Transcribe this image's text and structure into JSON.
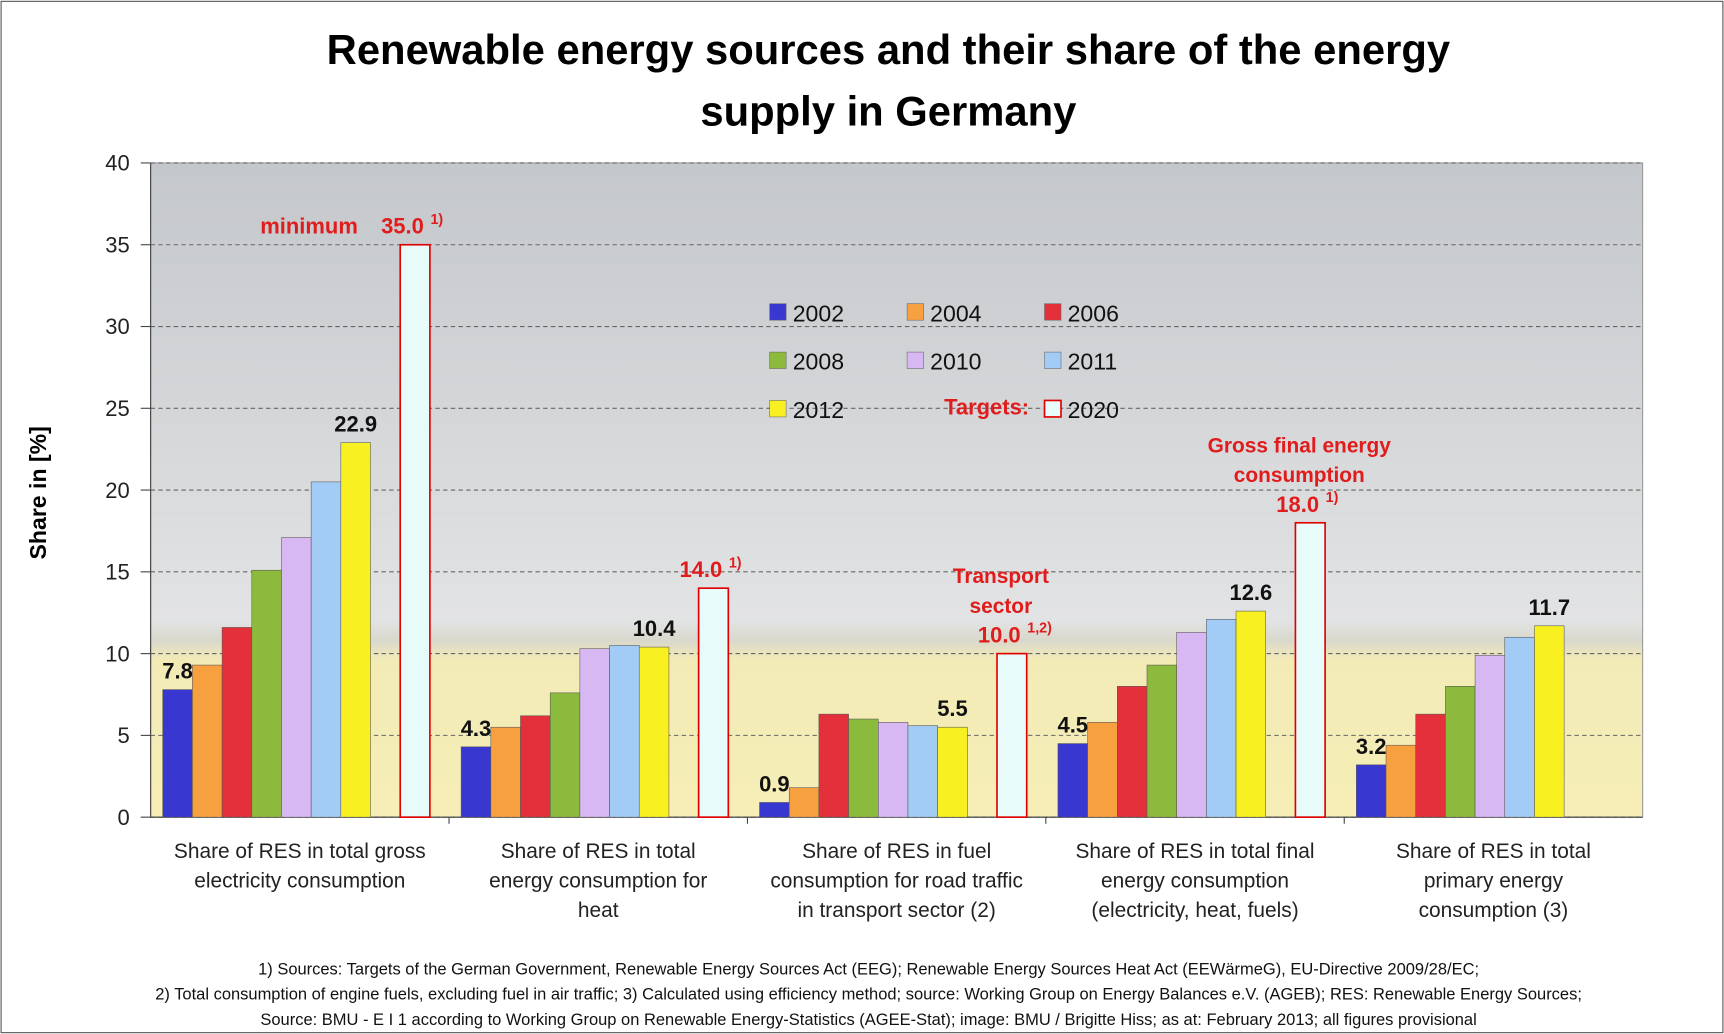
{
  "chart_data": {
    "type": "bar",
    "title": [
      "Renewable energy sources and their share of the energy",
      "supply in Germany"
    ],
    "ylabel": "Share in [%]",
    "categories": [
      [
        "Share of RES in total gross",
        "electricity consumption"
      ],
      [
        "Share of RES in total",
        "energy consumption for",
        "heat"
      ],
      [
        "Share of RES in fuel",
        "consumption for road traffic",
        "in transport sector (2)"
      ],
      [
        "Share of RES in total final",
        "energy consumption",
        "(electricity, heat, fuels)"
      ],
      [
        "Share of RES in total",
        "primary energy",
        "consumption (3)"
      ]
    ],
    "series": [
      {
        "name": "2002",
        "color": "#3838d0",
        "values": [
          7.8,
          4.3,
          0.9,
          4.5,
          3.2
        ],
        "value_labels": [
          "7.8",
          "4.3",
          "0.9",
          "4.5",
          "3.2"
        ]
      },
      {
        "name": "2004",
        "color": "#f7a040",
        "values": [
          9.3,
          5.5,
          1.8,
          5.8,
          4.4
        ]
      },
      {
        "name": "2006",
        "color": "#e3303a",
        "values": [
          11.6,
          6.2,
          6.3,
          8.0,
          6.3
        ]
      },
      {
        "name": "2008",
        "color": "#8cba3c",
        "values": [
          15.1,
          7.6,
          6.0,
          9.3,
          8.0
        ]
      },
      {
        "name": "2010",
        "color": "#d8b8f2",
        "values": [
          17.1,
          10.3,
          5.8,
          11.3,
          9.9
        ]
      },
      {
        "name": "2011",
        "color": "#a2ccf6",
        "values": [
          20.5,
          10.5,
          5.6,
          12.1,
          11.0
        ]
      },
      {
        "name": "2012",
        "color": "#f8f020",
        "values": [
          22.9,
          10.4,
          5.5,
          12.6,
          11.7
        ],
        "value_labels": [
          "22.9",
          "10.4",
          "5.5",
          "12.6",
          "11.7"
        ]
      },
      {
        "name": "2020",
        "color": "#e8fbfb",
        "edgecolor": "#e00000",
        "values": [
          35.0,
          14.0,
          10.0,
          18.0,
          null
        ],
        "value_labels": [
          "35.0",
          "14.0",
          "10.0",
          "18.0",
          null
        ]
      }
    ],
    "legend_targets_label": "Targets:",
    "target_annotations": [
      {
        "prefix": [
          "minimum"
        ],
        "note": "1)"
      },
      {
        "note": "1)"
      },
      {
        "prefix": [
          "Transport",
          "sector"
        ],
        "note": "1,2)"
      },
      {
        "prefix": [
          "Gross final energy",
          "consumption"
        ],
        "note": "1)"
      },
      null
    ],
    "annotation_color": "#e01c1c",
    "ylim": [
      0,
      40
    ],
    "yticks": [
      0,
      5,
      10,
      15,
      20,
      25,
      30,
      35,
      40
    ],
    "grid": true,
    "footnotes": [
      "1) Sources: Targets of the German Government, Renewable Energy Sources Act (EEG); Renewable Energy Sources Heat Act (EEWärmeG), EU-Directive 2009/28/EC;",
      "2) Total consumption of engine fuels, excluding fuel in air traffic; 3) Calculated using efficiency method; source: Working Group on Energy Balances e.V. (AGEB); RES: Renewable Energy Sources;",
      "Source: BMU - E I 1 according to Working Group on Renewable Energy-Statistics (AGEE-Stat); image: BMU / Brigitte Hiss; as at: February 2013; all figures provisional"
    ]
  }
}
